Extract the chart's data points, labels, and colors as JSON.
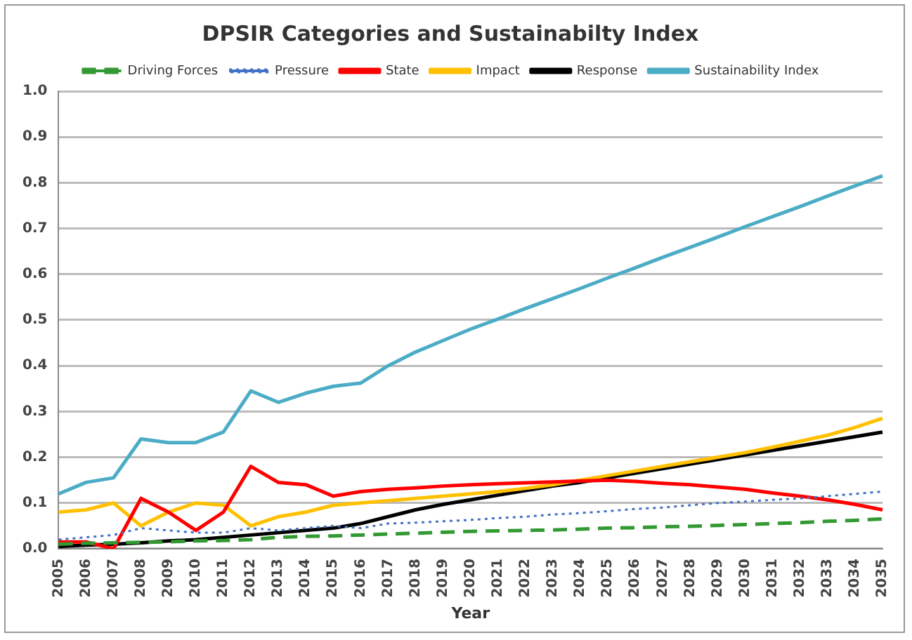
{
  "chart_data": {
    "type": "line",
    "title": "DPSIR Categories and Sustainabilty Index",
    "xlabel": "Year",
    "categories": [
      "2005",
      "2006",
      "2007",
      "2008",
      "2009",
      "2010",
      "2011",
      "2012",
      "2013",
      "2014",
      "2015",
      "2016",
      "2017",
      "2018",
      "2019",
      "2020",
      "2021",
      "2022",
      "2023",
      "2024",
      "2025",
      "2026",
      "2027",
      "2028",
      "2029",
      "2030",
      "2031",
      "2032",
      "2033",
      "2034",
      "2035"
    ],
    "series": [
      {
        "name": "Driving Forces",
        "color": "#339933",
        "line_style": "dashed",
        "values": [
          0.01,
          0.012,
          0.013,
          0.014,
          0.015,
          0.017,
          0.018,
          0.02,
          0.025,
          0.027,
          0.028,
          0.03,
          0.032,
          0.034,
          0.036,
          0.038,
          0.039,
          0.04,
          0.041,
          0.043,
          0.045,
          0.046,
          0.048,
          0.049,
          0.051,
          0.053,
          0.055,
          0.057,
          0.06,
          0.062,
          0.065
        ]
      },
      {
        "name": "Pressure",
        "color": "#4472c4",
        "line_style": "dotted",
        "values": [
          0.02,
          0.025,
          0.03,
          0.045,
          0.04,
          0.035,
          0.035,
          0.045,
          0.04,
          0.045,
          0.05,
          0.045,
          0.055,
          0.057,
          0.06,
          0.063,
          0.067,
          0.07,
          0.075,
          0.078,
          0.082,
          0.087,
          0.09,
          0.095,
          0.1,
          0.103,
          0.107,
          0.11,
          0.115,
          0.12,
          0.125
        ]
      },
      {
        "name": "State",
        "color": "#ff0000",
        "line_style": "solid",
        "values": [
          0.015,
          0.015,
          0.0,
          0.11,
          0.08,
          0.04,
          0.08,
          0.18,
          0.145,
          0.14,
          0.115,
          0.125,
          0.13,
          0.133,
          0.137,
          0.14,
          0.142,
          0.144,
          0.146,
          0.148,
          0.15,
          0.147,
          0.143,
          0.14,
          0.135,
          0.13,
          0.122,
          0.115,
          0.107,
          0.097,
          0.085
        ]
      },
      {
        "name": "Impact",
        "color": "#ffc000",
        "line_style": "solid",
        "values": [
          0.08,
          0.085,
          0.1,
          0.05,
          0.08,
          0.1,
          0.095,
          0.05,
          0.07,
          0.08,
          0.095,
          0.1,
          0.105,
          0.11,
          0.115,
          0.12,
          0.125,
          0.132,
          0.14,
          0.15,
          0.16,
          0.17,
          0.18,
          0.19,
          0.2,
          0.21,
          0.222,
          0.235,
          0.248,
          0.265,
          0.285
        ]
      },
      {
        "name": "Response",
        "color": "#000000",
        "line_style": "solid",
        "values": [
          0.005,
          0.008,
          0.01,
          0.013,
          0.017,
          0.02,
          0.025,
          0.03,
          0.035,
          0.04,
          0.045,
          0.055,
          0.07,
          0.085,
          0.097,
          0.107,
          0.117,
          0.127,
          0.137,
          0.145,
          0.155,
          0.165,
          0.175,
          0.185,
          0.195,
          0.205,
          0.215,
          0.225,
          0.235,
          0.245,
          0.255
        ]
      },
      {
        "name": "Sustainability Index",
        "color": "#4bacc6",
        "line_style": "solid",
        "values": [
          0.12,
          0.145,
          0.155,
          0.24,
          0.232,
          0.232,
          0.255,
          0.345,
          0.32,
          0.34,
          0.355,
          0.362,
          0.4,
          0.43,
          0.455,
          0.48,
          0.502,
          0.525,
          0.547,
          0.569,
          0.592,
          0.614,
          0.637,
          0.659,
          0.681,
          0.704,
          0.726,
          0.748,
          0.771,
          0.793,
          0.815
        ]
      }
    ],
    "ylim": [
      0,
      1
    ],
    "yticks": [
      {
        "value": 0,
        "label": "0.0"
      },
      {
        "value": 0.1,
        "label": "0.1"
      },
      {
        "value": 0.2,
        "label": "0.2"
      },
      {
        "value": 0.3,
        "label": "0.3"
      },
      {
        "value": 0.4,
        "label": "0.4"
      },
      {
        "value": 0.5,
        "label": "0.5"
      },
      {
        "value": 0.6,
        "label": "0.6"
      },
      {
        "value": 0.7,
        "label": "0.7"
      },
      {
        "value": 0.8,
        "label": "0.8"
      },
      {
        "value": 0.9,
        "label": "0.9"
      },
      {
        "value": 1,
        "label": "1.0"
      }
    ],
    "grid": "y",
    "legend": "top",
    "marker": "none"
  }
}
